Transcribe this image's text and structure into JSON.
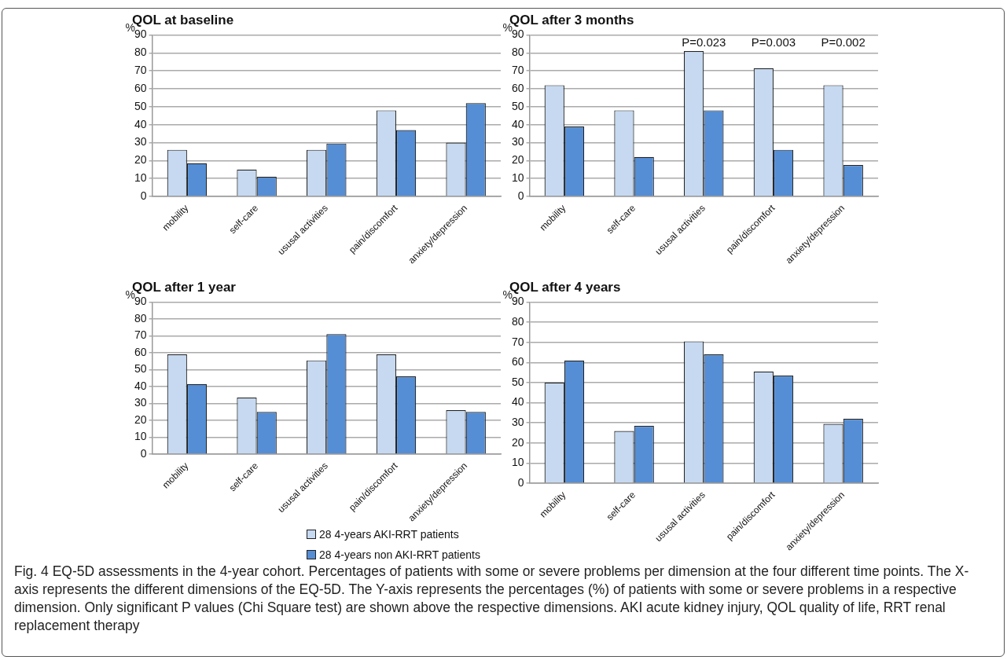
{
  "chart_data": [
    {
      "type": "bar",
      "title": "QOL at baseline",
      "ylabel": "%",
      "categories": [
        "mobility",
        "self-care",
        "ususal activities",
        "pain/discomfort",
        "anxiety/depression"
      ],
      "series": [
        {
          "color": "#c6d9f1",
          "values": [
            26,
            15,
            26,
            48,
            30
          ]
        },
        {
          "color": "#558ed5",
          "values": [
            18.5,
            11,
            29.5,
            37,
            52
          ]
        }
      ],
      "ylim": [
        0,
        90
      ],
      "yticks": [
        0,
        10,
        20,
        30,
        40,
        50,
        60,
        70,
        80,
        90
      ],
      "grid": "y"
    },
    {
      "type": "bar",
      "title": "QOL after 3 months",
      "ylabel": "%",
      "categories": [
        "mobility",
        "self-care",
        "ususal activities",
        "pain/discomfort",
        "anxiety/depression"
      ],
      "series": [
        {
          "color": "#c6d9f1",
          "values": [
            62,
            48,
            81,
            71.5,
            62
          ]
        },
        {
          "color": "#558ed5",
          "values": [
            39,
            22,
            48,
            26,
            17.5
          ]
        }
      ],
      "ylim": [
        0,
        90
      ],
      "yticks": [
        0,
        10,
        20,
        30,
        40,
        50,
        60,
        70,
        80,
        90
      ],
      "grid": "y",
      "annotations": [
        "P=0.023",
        "P=0.003",
        "P=0.002"
      ]
    },
    {
      "type": "bar",
      "title": "QOL after 1 year",
      "ylabel": "%",
      "categories": [
        "mobility",
        "self-care",
        "ususal activities",
        "pain/discomfort",
        "anxiety/depression"
      ],
      "series": [
        {
          "name": "28 4-years AKI-RRT patients",
          "color": "#c6d9f1",
          "values": [
            59,
            33.5,
            55.5,
            59,
            26
          ]
        },
        {
          "name": "28 4-years non AKI-RRT patients",
          "color": "#558ed5",
          "values": [
            41.5,
            25,
            71,
            46,
            25
          ]
        }
      ],
      "ylim": [
        0,
        90
      ],
      "yticks": [
        0,
        10,
        20,
        30,
        40,
        50,
        60,
        70,
        80,
        90
      ],
      "grid": "y",
      "legend": "bottom"
    },
    {
      "type": "bar",
      "title": "QOL after 4 years",
      "ylabel": "%",
      "categories": [
        "mobility",
        "self-care",
        "ususal activities",
        "pain/discomfort",
        "anxiety/depression"
      ],
      "series": [
        {
          "color": "#c6d9f1",
          "values": [
            50,
            26,
            70.5,
            55.5,
            29.5
          ]
        },
        {
          "color": "#558ed5",
          "values": [
            61,
            28.5,
            64,
            53.5,
            32
          ]
        }
      ],
      "ylim": [
        0,
        90
      ],
      "yticks": [
        0,
        10,
        20,
        30,
        40,
        50,
        60,
        70,
        80,
        90
      ],
      "grid": "y",
      "annotations": [
        "Fig. 4 EQ-5D assessments in the 4-year cohort. Percentages of patients with some or severe problems per dimension at the four different time points. The X-axis represents the different dimensions of the EQ-5D. The Y-axis represents the percentages (%) of patients with some or severe problems in a respective dimension. Only significant P values (Chi Square test) are shown above the respective dimensions. AKI acute kidney injury, QOL quality of life, RRT renal replacement therapy"
      ]
    }
  ]
}
